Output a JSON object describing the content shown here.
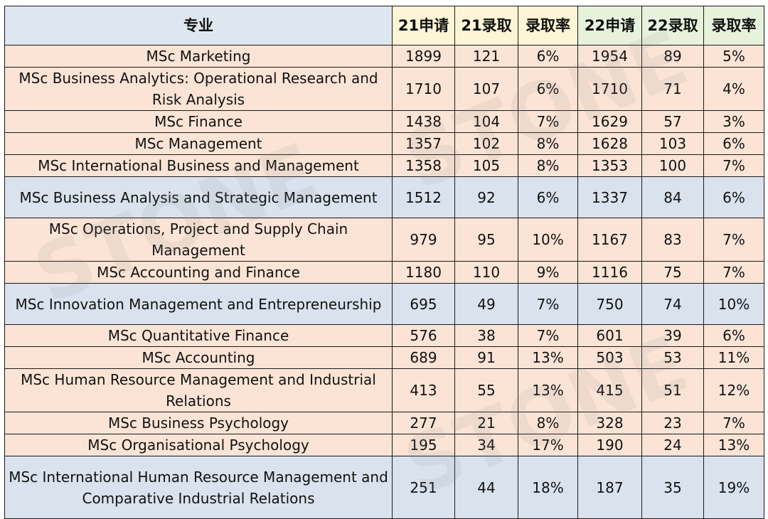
{
  "headers": {
    "major": "专业",
    "apply21": "21申请",
    "admit21": "21录取",
    "rate21": "录取率",
    "apply22": "22申请",
    "admit22": "22录取",
    "rate22": "录取率"
  },
  "watermark": "STONE",
  "colors": {
    "row_salmon": "#fbe4d5",
    "row_blue": "#d9e2ed",
    "header_blue": "#dee6ef",
    "header_yellow": "#fdf5d6",
    "header_green": "#e6f2dc"
  },
  "rows": [
    {
      "major": "MSc Marketing",
      "apply21": "1899",
      "admit21": "121",
      "rate21": "6%",
      "apply22": "1954",
      "admit22": "89",
      "rate22": "5%",
      "color": "salmon"
    },
    {
      "major": "MSc Business Analytics: Operational Research and Risk Analysis",
      "apply21": "1710",
      "admit21": "107",
      "rate21": "6%",
      "apply22": "1710",
      "admit22": "71",
      "rate22": "4%",
      "color": "salmon"
    },
    {
      "major": "MSc Finance",
      "apply21": "1438",
      "admit21": "104",
      "rate21": "7%",
      "apply22": "1629",
      "admit22": "57",
      "rate22": "3%",
      "color": "salmon"
    },
    {
      "major": "MSc Management",
      "apply21": "1357",
      "admit21": "102",
      "rate21": "8%",
      "apply22": "1628",
      "admit22": "103",
      "rate22": "6%",
      "color": "salmon"
    },
    {
      "major": "MSc International Business and Management",
      "apply21": "1358",
      "admit21": "105",
      "rate21": "8%",
      "apply22": "1353",
      "admit22": "100",
      "rate22": "7%",
      "color": "salmon"
    },
    {
      "major": "MSc Business Analysis and Strategic Management",
      "apply21": "1512",
      "admit21": "92",
      "rate21": "6%",
      "apply22": "1337",
      "admit22": "84",
      "rate22": "6%",
      "color": "blue"
    },
    {
      "major": "MSc Operations, Project and Supply Chain Management",
      "apply21": "979",
      "admit21": "95",
      "rate21": "10%",
      "apply22": "1167",
      "admit22": "83",
      "rate22": "7%",
      "color": "salmon"
    },
    {
      "major": "MSc Accounting and Finance",
      "apply21": "1180",
      "admit21": "110",
      "rate21": "9%",
      "apply22": "1116",
      "admit22": "75",
      "rate22": "7%",
      "color": "salmon"
    },
    {
      "major": "MSc Innovation Management and Entrepreneurship",
      "apply21": "695",
      "admit21": "49",
      "rate21": "7%",
      "apply22": "750",
      "admit22": "74",
      "rate22": "10%",
      "color": "blue"
    },
    {
      "major": "MSc Quantitative Finance",
      "apply21": "576",
      "admit21": "38",
      "rate21": "7%",
      "apply22": "601",
      "admit22": "39",
      "rate22": "6%",
      "color": "salmon"
    },
    {
      "major": "MSc Accounting",
      "apply21": "689",
      "admit21": "91",
      "rate21": "13%",
      "apply22": "503",
      "admit22": "53",
      "rate22": "11%",
      "color": "salmon"
    },
    {
      "major": "MSc Human Resource Management and Industrial Relations",
      "apply21": "413",
      "admit21": "55",
      "rate21": "13%",
      "apply22": "415",
      "admit22": "51",
      "rate22": "12%",
      "color": "salmon"
    },
    {
      "major": "MSc Business Psychology",
      "apply21": "277",
      "admit21": "21",
      "rate21": "8%",
      "apply22": "328",
      "admit22": "23",
      "rate22": "7%",
      "color": "salmon"
    },
    {
      "major": "MSc Organisational Psychology",
      "apply21": "195",
      "admit21": "34",
      "rate21": "17%",
      "apply22": "190",
      "admit22": "24",
      "rate22": "13%",
      "color": "salmon"
    },
    {
      "major": "MSc International Human Resource Management and Comparative Industrial Relations",
      "apply21": "251",
      "admit21": "44",
      "rate21": "18%",
      "apply22": "187",
      "admit22": "35",
      "rate22": "19%",
      "color": "blue"
    }
  ]
}
